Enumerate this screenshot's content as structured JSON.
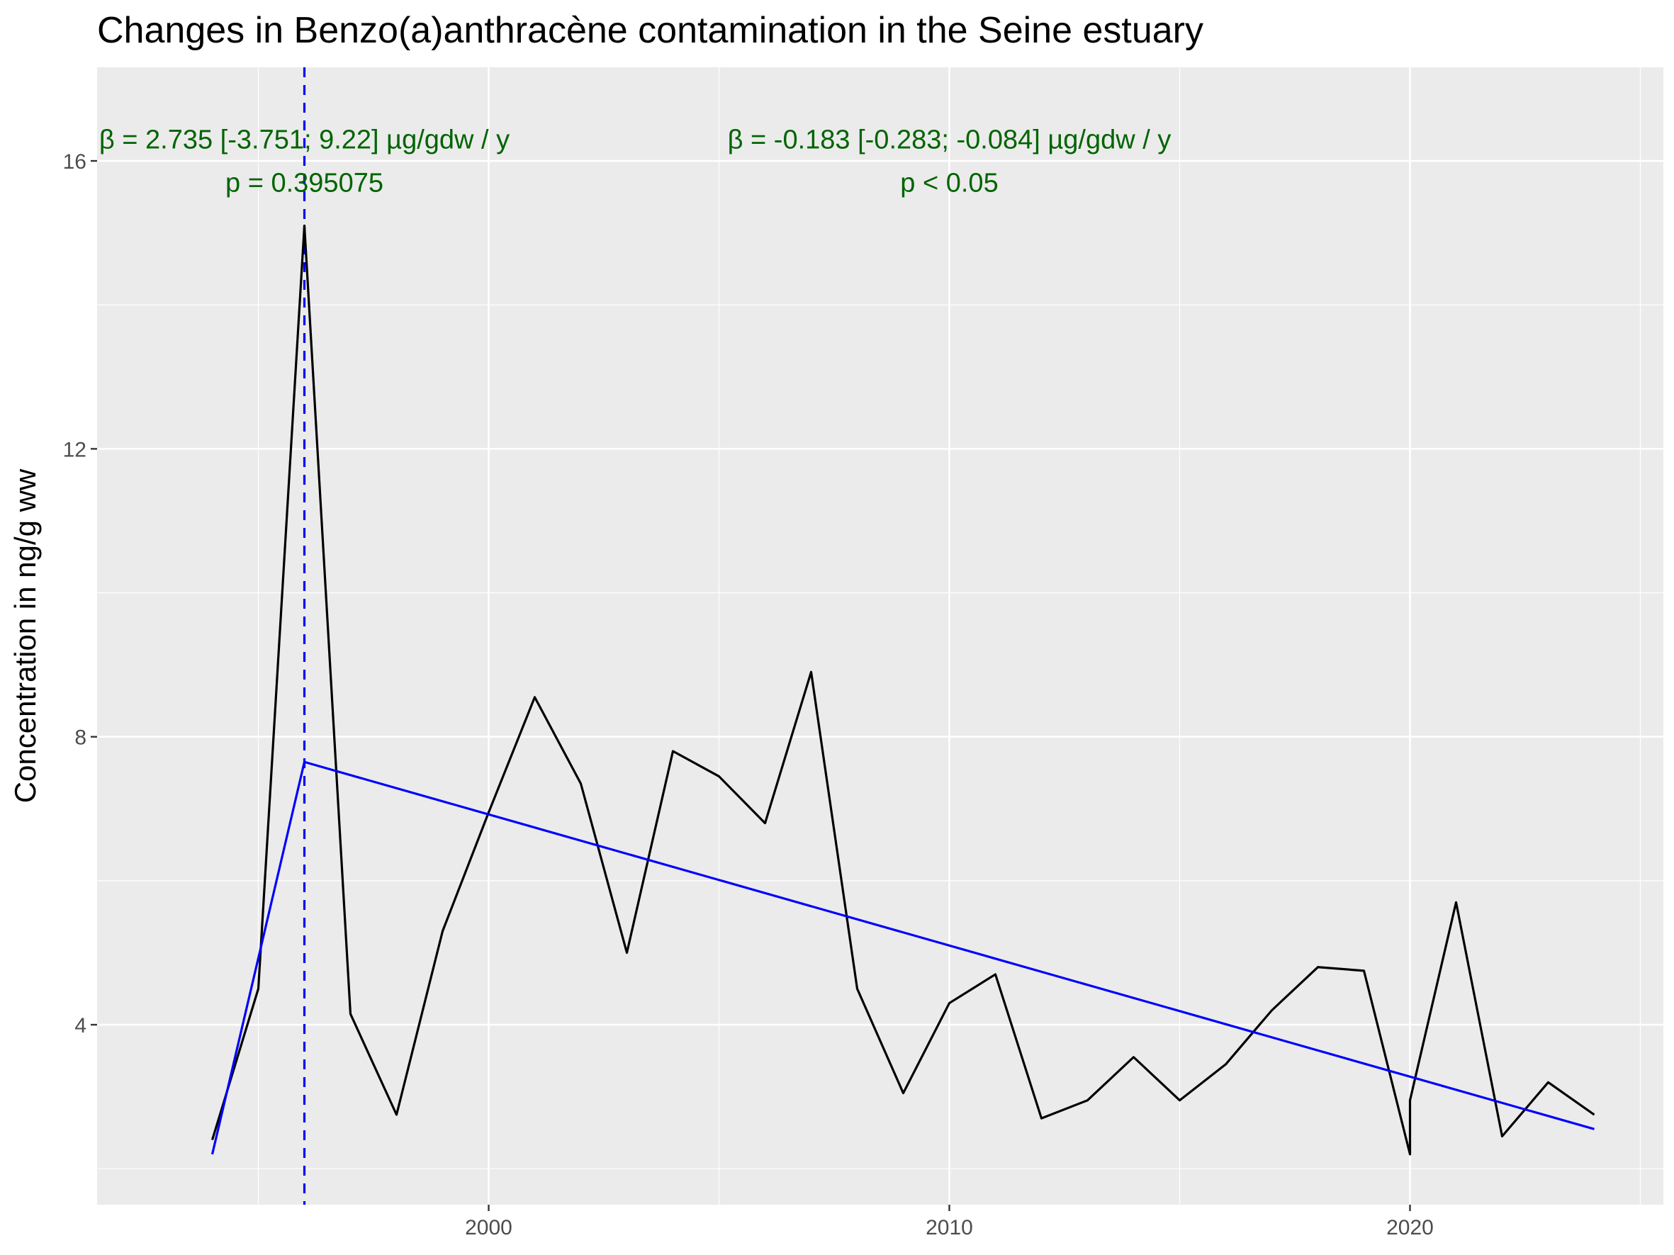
{
  "chart_data": {
    "type": "line",
    "title": "Changes in Benzo(a)anthracène contamination in the Seine estuary",
    "xlabel": "",
    "ylabel": "Concentration in ng/g ww",
    "xlim": [
      1991.5,
      2025.5
    ],
    "ylim": [
      1.5,
      17.3
    ],
    "x_ticks": [
      2000,
      2010,
      2020
    ],
    "y_ticks": [
      4,
      8,
      12,
      16
    ],
    "grid": true,
    "background": "#EBEBEB",
    "series": [
      {
        "role": "observed",
        "color": "#000000",
        "x": [
          1994,
          1995,
          1996,
          1997,
          1998,
          1999,
          2000,
          2001,
          2002,
          2003,
          2004,
          2005,
          2006,
          2007,
          2008,
          2009,
          2010,
          2011,
          2012,
          2013,
          2014,
          2015,
          2016,
          2017,
          2018,
          2019,
          2020,
          2020,
          2021,
          2022,
          2023,
          2024
        ],
        "y": [
          2.4,
          4.5,
          15.1,
          4.15,
          2.75,
          5.3,
          6.95,
          8.55,
          7.35,
          5.0,
          7.8,
          7.45,
          6.8,
          8.9,
          4.5,
          3.05,
          4.3,
          4.7,
          2.7,
          2.95,
          3.55,
          2.95,
          3.45,
          4.2,
          4.8,
          4.75,
          2.2,
          2.95,
          5.7,
          2.45,
          3.2,
          2.75
        ]
      },
      {
        "role": "segmented-fit",
        "color": "#0000FF",
        "x": [
          1994,
          1996,
          2024
        ],
        "y": [
          2.2,
          7.65,
          2.55
        ]
      }
    ],
    "breakpoint": {
      "x": 1996,
      "color": "#0000FF",
      "style": "dashed"
    },
    "annotations": [
      {
        "lines": [
          "β = 2.735 [-3.751; 9.22] µg/gdw / y",
          "p = 0.395075"
        ],
        "x": 1996,
        "y": [
          16.3,
          15.7
        ],
        "color": "#006400"
      },
      {
        "lines": [
          "β = -0.183 [-0.283; -0.084] µg/gdw / y",
          "p < 0.05"
        ],
        "x": 2010,
        "y": [
          16.3,
          15.7
        ],
        "color": "#006400"
      }
    ]
  }
}
